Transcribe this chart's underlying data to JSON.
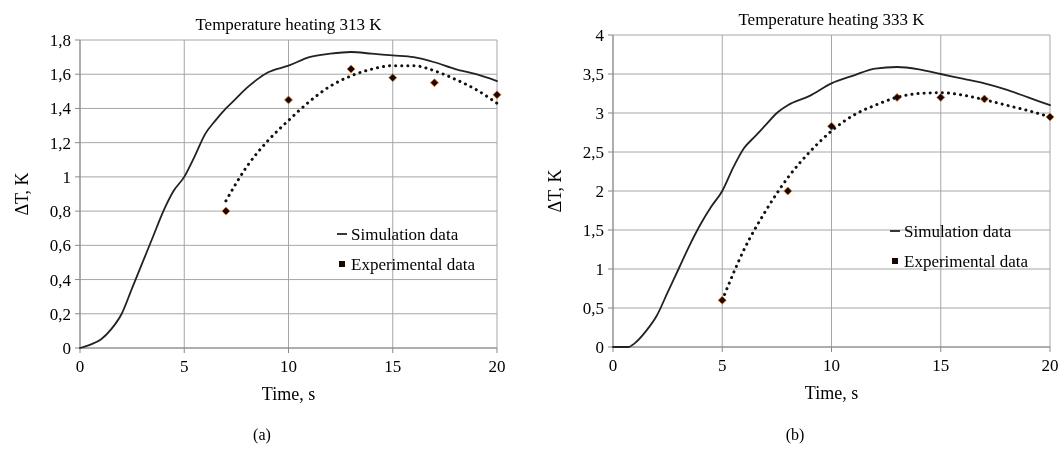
{
  "chart_data": [
    {
      "type": "line",
      "title": "Temperature heating 313 K",
      "xlabel": "Time, s",
      "ylabel": "ΔT, K",
      "xlim": [
        0,
        20
      ],
      "xticks": [
        0,
        5,
        10,
        15,
        20
      ],
      "ylim": [
        0,
        1.8
      ],
      "yticks": [
        0,
        {
          "value": 0.2,
          "label": "0,2"
        },
        {
          "value": 0.4,
          "label": "0,4"
        },
        {
          "value": 0.6,
          "label": "0,6"
        },
        {
          "value": 0.8,
          "label": "0,8"
        },
        1,
        {
          "value": 1.2,
          "label": "1,2"
        },
        {
          "value": 1.4,
          "label": "1,4"
        },
        {
          "value": 1.6,
          "label": "1,6"
        },
        {
          "value": 1.8,
          "label": "1,8"
        }
      ],
      "grid": true,
      "legend": "right",
      "annotations": [
        "(a)"
      ],
      "series": [
        {
          "name": "Simulation data",
          "color": "#222222",
          "line_style": "solid",
          "marker": "none",
          "x": [
            0,
            0.5,
            1,
            1.5,
            2,
            2.5,
            3,
            3.5,
            4,
            4.5,
            5,
            5.5,
            6,
            6.5,
            7,
            7.5,
            8,
            8.5,
            9,
            10,
            11,
            12,
            13,
            14,
            15,
            16,
            17,
            18,
            19,
            20
          ],
          "values": [
            0,
            0.02,
            0.05,
            0.11,
            0.2,
            0.35,
            0.5,
            0.65,
            0.8,
            0.92,
            1.0,
            1.12,
            1.25,
            1.33,
            1.4,
            1.46,
            1.52,
            1.57,
            1.61,
            1.65,
            1.7,
            1.72,
            1.73,
            1.72,
            1.71,
            1.7,
            1.67,
            1.63,
            1.6,
            1.56
          ]
        },
        {
          "name": "Experimental data",
          "type": "scatter",
          "color": "#1a0800",
          "marker": "diamond",
          "x": [
            7,
            10,
            13,
            15,
            17,
            20
          ],
          "values": [
            0.8,
            1.45,
            1.63,
            1.58,
            1.55,
            1.48
          ]
        },
        {
          "color": "#111111",
          "line_style": "dotted",
          "marker": "none",
          "x": [
            7,
            8,
            9,
            10,
            11,
            12,
            13,
            14,
            15,
            16,
            17,
            18,
            19,
            20
          ],
          "values": [
            0.86,
            1.06,
            1.21,
            1.33,
            1.44,
            1.53,
            1.59,
            1.63,
            1.65,
            1.65,
            1.62,
            1.57,
            1.51,
            1.43
          ]
        }
      ]
    },
    {
      "type": "line",
      "title": "Temperature heating 333 K",
      "xlabel": "Time, s",
      "ylabel": "ΔT, K",
      "xlim": [
        0,
        20
      ],
      "xticks": [
        0,
        5,
        10,
        15,
        20
      ],
      "ylim": [
        0,
        4
      ],
      "yticks": [
        0,
        {
          "value": 0.5,
          "label": "0,5"
        },
        1,
        {
          "value": 1.5,
          "label": "1,5"
        },
        2,
        {
          "value": 2.5,
          "label": "2,5"
        },
        3,
        {
          "value": 3.5,
          "label": "3,5"
        },
        4
      ],
      "grid": true,
      "legend": "right",
      "annotations": [
        "(b)"
      ],
      "series": [
        {
          "name": "Simulation data",
          "color": "#222222",
          "line_style": "solid",
          "marker": "none",
          "x": [
            0,
            0.7,
            1,
            1.5,
            2,
            2.5,
            3,
            3.5,
            4,
            4.5,
            5,
            5.5,
            6,
            6.5,
            7,
            7.5,
            8,
            9,
            10,
            11,
            12,
            13,
            14,
            15,
            16,
            17,
            18,
            19,
            20
          ],
          "values": [
            0,
            0,
            0.05,
            0.2,
            0.4,
            0.7,
            1.0,
            1.3,
            1.57,
            1.8,
            2.0,
            2.3,
            2.55,
            2.7,
            2.85,
            3.0,
            3.1,
            3.22,
            3.38,
            3.48,
            3.57,
            3.59,
            3.56,
            3.5,
            3.44,
            3.38,
            3.3,
            3.2,
            3.1
          ]
        },
        {
          "name": "Experimental data",
          "type": "scatter",
          "color": "#1a0800",
          "marker": "diamond",
          "x": [
            5,
            8,
            10,
            13,
            15,
            17,
            20
          ],
          "values": [
            0.6,
            2.0,
            2.83,
            3.2,
            3.2,
            3.18,
            2.95
          ]
        },
        {
          "color": "#111111",
          "line_style": "dotted",
          "marker": "none",
          "x": [
            5,
            6,
            7,
            8,
            9,
            10,
            11,
            12,
            13,
            14,
            15,
            16,
            17,
            18,
            19,
            20
          ],
          "values": [
            0.6,
            1.25,
            1.75,
            2.17,
            2.5,
            2.77,
            2.97,
            3.1,
            3.2,
            3.25,
            3.26,
            3.23,
            3.17,
            3.1,
            3.03,
            2.95
          ]
        }
      ]
    }
  ]
}
